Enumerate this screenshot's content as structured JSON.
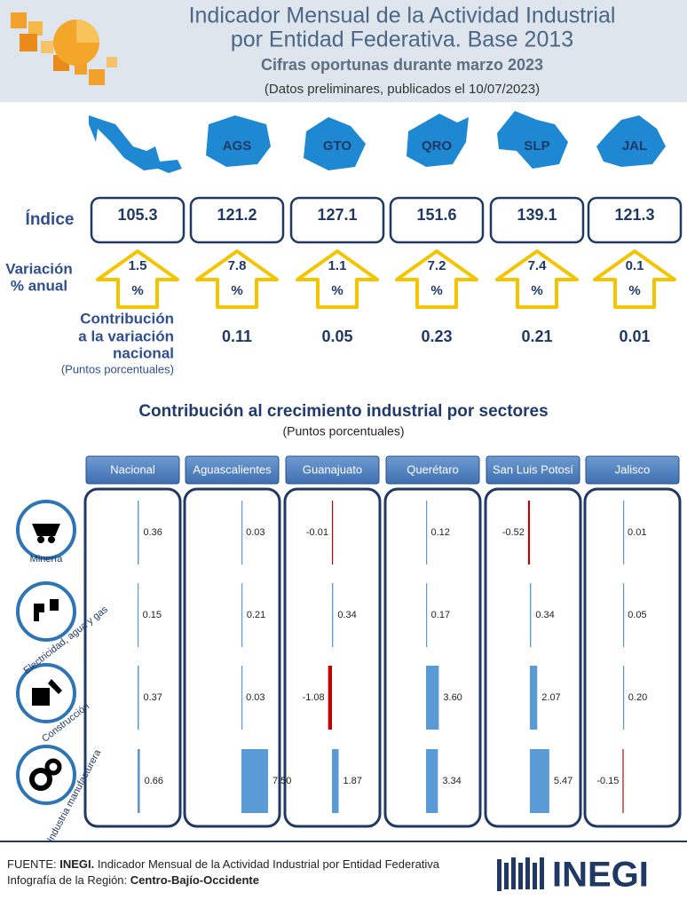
{
  "header": {
    "title_line1": "Indicador Mensual de la Actividad Industrial",
    "title_line2": "por Entidad Federativa. Base 2013",
    "subtitle": "Cifras oportunas durante marzo 2023",
    "note": "(Datos preliminares, publicados el 10/07/2023)"
  },
  "states": [
    "AGS",
    "GTO",
    "QRO",
    "SLP",
    "JAL"
  ],
  "indicators": {
    "index_label": "Índice",
    "variation_label": [
      "Variación",
      "% anual"
    ],
    "contribution_label": [
      "Contribución",
      "a la variación",
      "nacional"
    ],
    "contribution_units": "(Puntos porcentuales)",
    "index": [
      105.3,
      121.2,
      127.1,
      151.6,
      139.1,
      121.3
    ],
    "variation": [
      1.5,
      7.8,
      1.1,
      7.2,
      7.4,
      0.1
    ],
    "percent_sign": "%",
    "contribution": [
      0.11,
      0.05,
      0.23,
      0.21,
      0.01
    ]
  },
  "sectors_chart": {
    "title": "Contribución al crecimiento industrial por sectores",
    "subtitle": "(Puntos porcentuales)",
    "columns": [
      "Nacional",
      "Aguascalientes",
      "Guanajuato",
      "Querétaro",
      "San Luis Potosí",
      "Jalisco"
    ],
    "sectors": [
      "Minería",
      "Electricidad, agua y gas",
      "Construcción",
      "Industria manufacturera"
    ],
    "values": [
      [
        0.36,
        0.03,
        -0.01,
        0.12,
        -0.52,
        0.01
      ],
      [
        0.15,
        0.21,
        0.34,
        0.17,
        0.34,
        0.05
      ],
      [
        0.37,
        0.03,
        -1.08,
        3.6,
        2.07,
        0.2
      ],
      [
        0.66,
        7.5,
        1.87,
        3.34,
        5.47,
        -0.15
      ]
    ],
    "value_labels": [
      [
        "0.36",
        "0.03",
        "-0.01",
        "0.12",
        "-0.52",
        "0.01"
      ],
      [
        "0.15",
        "0.21",
        "0.34",
        "0.17",
        "0.34",
        "0.05"
      ],
      [
        "0.37",
        "0.03",
        "-1.08",
        "3.60",
        "2.07",
        "0.20"
      ],
      [
        "0.66",
        "7.50",
        "1.87",
        "3.34",
        "5.47",
        "-0.15"
      ]
    ],
    "positive_color": "#5b9bd5",
    "negative_color": "#c00000"
  },
  "footer": {
    "source_label": "FUENTE: ",
    "source_org": "INEGI.",
    "source_text": " Indicador Mensual de la Actividad Industrial por Entidad Federativa",
    "region_label": "Infografía de la Región: ",
    "region_name": "Centro-Bajío-Occidente",
    "logo": "INEGI"
  }
}
